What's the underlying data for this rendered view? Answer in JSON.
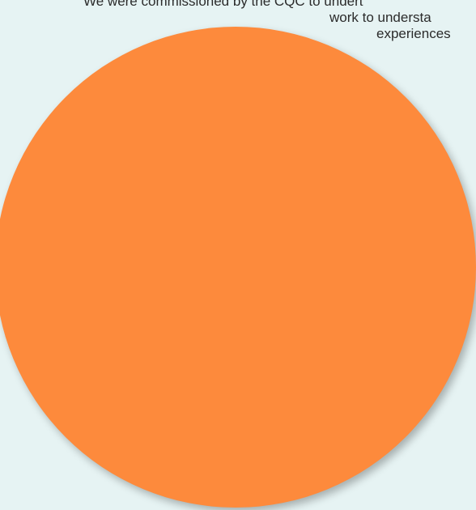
{
  "text": {
    "line1": "We were commissioned by the CQC to undert",
    "line2": "work to understa",
    "line3": "experiences"
  },
  "colors": {
    "background": "#e6f3f3",
    "circle": "#fd8a3c",
    "text": "#2b2b2b"
  }
}
